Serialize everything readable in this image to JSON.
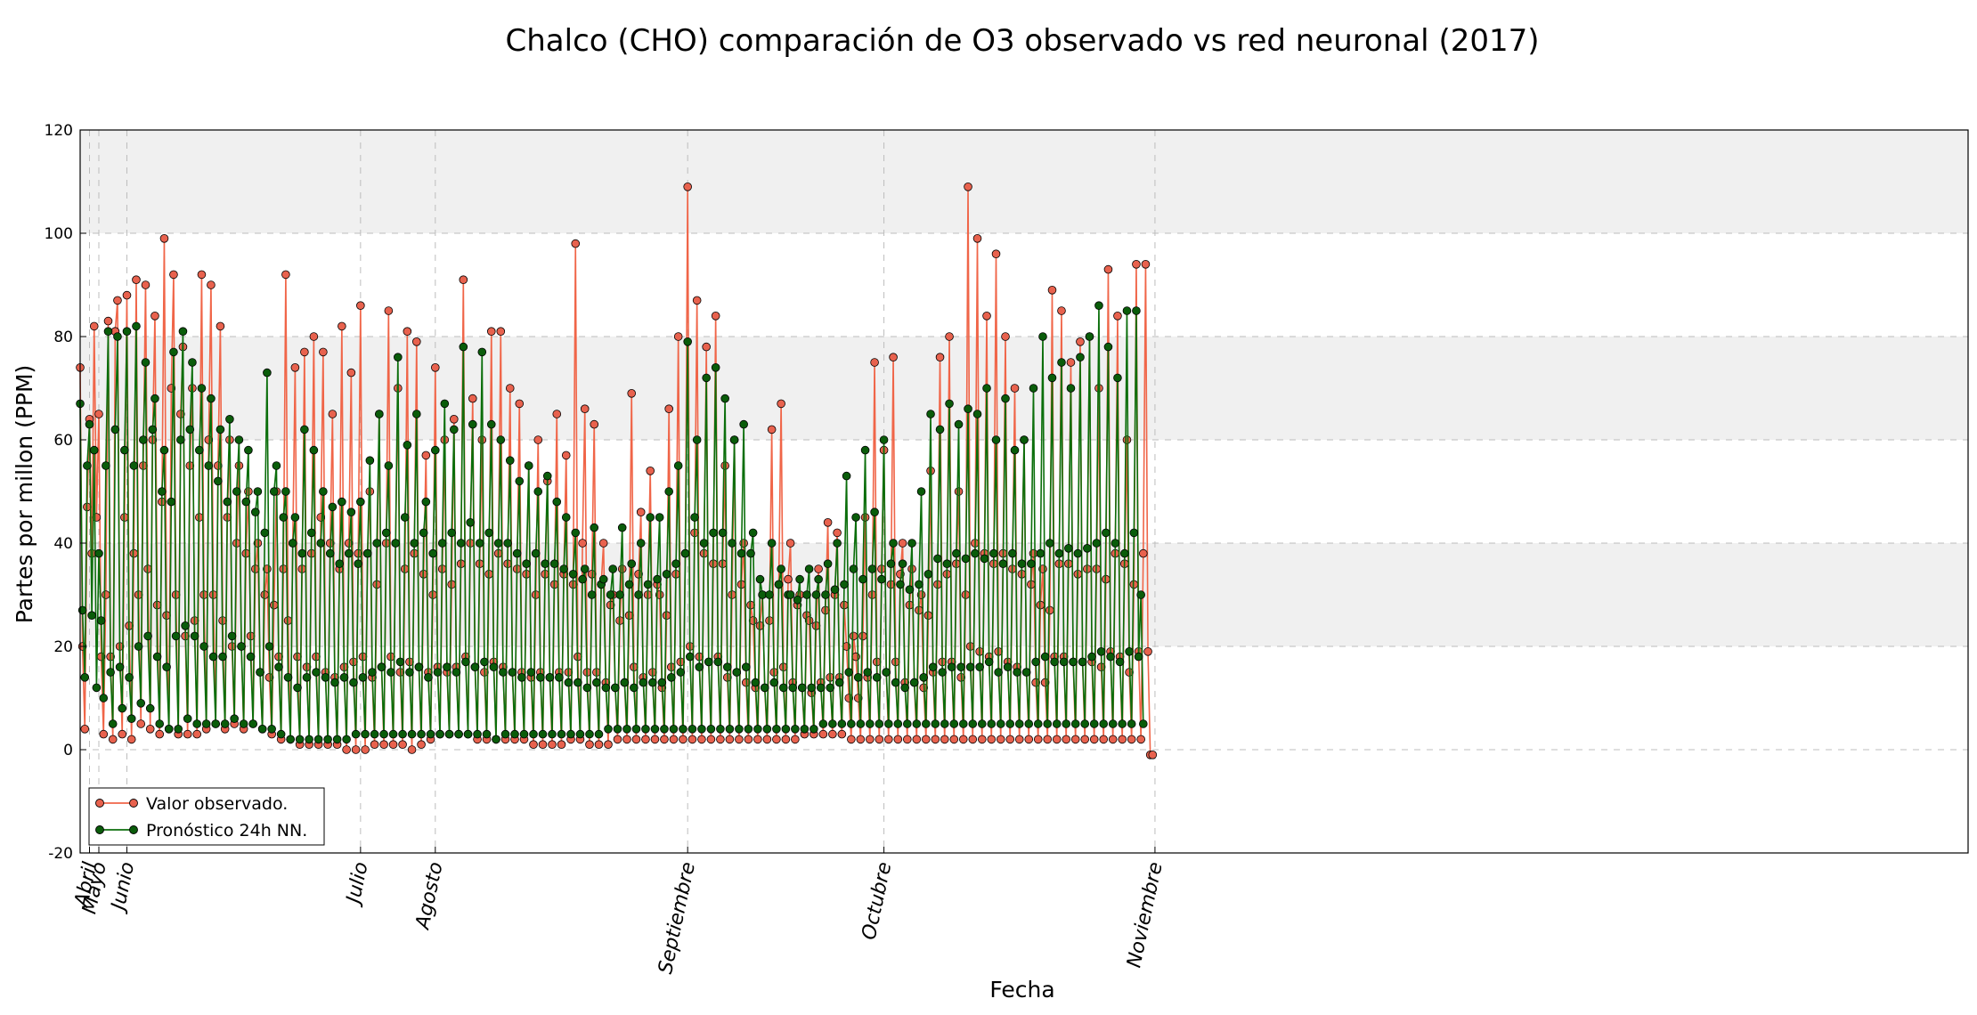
{
  "chart_data": {
    "type": "line",
    "title": "Chalco (CHO) comparación de O3 observado vs red neuronal (2017)",
    "xlabel": "Fecha",
    "ylabel": "Partes por millon (PPM)",
    "ylim": [
      -20,
      120
    ],
    "yticks": [
      -20,
      0,
      20,
      40,
      60,
      80,
      100,
      120
    ],
    "xlim": [
      "2017-04-29",
      "2017-11-17"
    ],
    "months": [
      {
        "label": "Abril",
        "date": "2017-04-30"
      },
      {
        "label": "Mayo",
        "date": "2017-05-01"
      },
      {
        "label": "Junio",
        "date": "2017-05-04"
      },
      {
        "label": "Julio",
        "date": "2017-05-29"
      },
      {
        "label": "Agosto",
        "date": "2017-06-06"
      },
      {
        "label": "Septiembre",
        "date": "2017-07-03"
      },
      {
        "label": "Octubre",
        "date": "2017-07-24"
      },
      {
        "label": "Noviembre",
        "date": "2017-08-22"
      }
    ],
    "shaded_bands": [
      [
        20,
        40
      ],
      [
        60,
        80
      ],
      [
        100,
        120
      ]
    ],
    "grid": true,
    "legend_position": "bottom-left",
    "series": [
      {
        "name": "Valor observado.",
        "color": "#f06548",
        "marker_color": "#e8624e",
        "x_start": "2017-04-29",
        "step_hours": 6,
        "values": [
          74,
          20,
          4,
          47,
          64,
          38,
          82,
          45,
          65,
          18,
          3,
          30,
          83,
          18,
          2,
          81,
          87,
          20,
          3,
          45,
          88,
          24,
          2,
          38,
          91,
          30,
          5,
          55,
          90,
          35,
          4,
          60,
          84,
          28,
          3,
          48,
          99,
          26,
          4,
          70,
          92,
          30,
          3,
          65,
          78,
          22,
          3,
          55,
          70,
          25,
          3,
          45,
          92,
          30,
          4,
          60,
          90,
          30,
          5,
          55,
          82,
          25,
          4,
          45,
          60,
          20,
          5,
          40,
          55,
          20,
          4,
          38,
          50,
          22,
          5,
          35,
          40,
          15,
          4,
          30,
          35,
          14,
          3,
          28,
          50,
          18,
          2,
          35,
          92,
          25,
          2,
          40,
          74,
          18,
          1,
          35,
          77,
          16,
          1,
          38,
          80,
          18,
          1,
          45,
          77,
          15,
          1,
          40,
          65,
          14,
          1,
          35,
          82,
          16,
          0,
          40,
          73,
          17,
          0,
          38,
          86,
          18,
          0,
          38,
          50,
          14,
          1,
          32,
          65,
          16,
          1,
          40,
          85,
          18,
          1,
          40,
          70,
          15,
          1,
          35,
          81,
          17,
          0,
          38,
          79,
          16,
          1,
          34,
          57,
          15,
          2,
          30,
          74,
          16,
          3,
          35,
          60,
          15,
          3,
          32,
          64,
          16,
          3,
          36,
          91,
          18,
          3,
          40,
          68,
          16,
          2,
          36,
          60,
          15,
          2,
          34,
          81,
          17,
          2,
          38,
          81,
          16,
          2,
          36,
          70,
          15,
          2,
          35,
          67,
          15,
          2,
          34,
          55,
          14,
          1,
          30,
          60,
          15,
          1,
          34,
          52,
          14,
          1,
          32,
          65,
          15,
          1,
          34,
          57,
          15,
          2,
          32,
          98,
          18,
          2,
          40,
          66,
          15,
          1,
          34,
          63,
          15,
          1,
          32,
          40,
          13,
          1,
          28,
          30,
          12,
          2,
          25,
          35,
          13,
          2,
          26,
          69,
          16,
          2,
          34,
          46,
          14,
          2,
          30,
          54,
          15,
          2,
          32,
          30,
          12,
          2,
          26,
          66,
          16,
          2,
          34,
          80,
          17,
          2,
          38,
          109,
          20,
          2,
          42,
          87,
          18,
          2,
          38,
          78,
          17,
          2,
          36,
          84,
          18,
          2,
          36,
          55,
          14,
          2,
          30,
          60,
          15,
          2,
          32,
          40,
          13,
          2,
          28,
          25,
          12,
          2,
          24,
          30,
          12,
          2,
          25,
          62,
          15,
          2,
          32,
          67,
          16,
          2,
          33,
          40,
          13,
          2,
          28,
          30,
          12,
          3,
          26,
          25,
          11,
          3,
          24,
          35,
          13,
          3,
          27,
          44,
          14,
          3,
          30,
          42,
          14,
          3,
          28,
          20,
          10,
          2,
          22,
          18,
          10,
          2,
          22,
          45,
          14,
          2,
          30,
          75,
          17,
          2,
          35,
          58,
          15,
          2,
          32,
          76,
          17,
          2,
          34,
          40,
          13,
          2,
          28,
          35,
          13,
          2,
          27,
          30,
          12,
          2,
          26,
          54,
          15,
          2,
          32,
          76,
          17,
          2,
          34,
          80,
          17,
          2,
          36,
          50,
          14,
          2,
          30,
          109,
          20,
          2,
          40,
          99,
          19,
          2,
          38,
          84,
          18,
          2,
          36,
          96,
          19,
          2,
          38,
          80,
          17,
          2,
          35,
          70,
          16,
          2,
          34,
          60,
          15,
          2,
          32,
          38,
          13,
          2,
          28,
          35,
          13,
          2,
          27,
          89,
          18,
          2,
          36,
          85,
          18,
          2,
          36,
          75,
          17,
          2,
          34,
          79,
          17,
          2,
          35,
          80,
          17,
          2,
          35,
          70,
          16,
          2,
          33,
          93,
          19,
          2,
          38,
          84,
          18,
          2,
          36,
          60,
          15,
          2,
          32,
          94,
          19,
          2,
          38,
          94,
          19,
          -1,
          -1
        ]
      },
      {
        "name": "Pronóstico 24h NN.",
        "color": "#0b6e0b",
        "marker_color": "#0a5c0a",
        "x_start": "2017-04-29",
        "step_hours": 6,
        "values": [
          67,
          27,
          14,
          55,
          63,
          26,
          58,
          12,
          38,
          25,
          10,
          55,
          81,
          15,
          5,
          62,
          80,
          16,
          8,
          58,
          81,
          14,
          6,
          55,
          82,
          20,
          9,
          60,
          75,
          22,
          8,
          62,
          68,
          18,
          5,
          50,
          58,
          16,
          4,
          48,
          77,
          22,
          4,
          60,
          81,
          24,
          6,
          62,
          75,
          22,
          5,
          58,
          70,
          20,
          5,
          55,
          68,
          18,
          5,
          52,
          62,
          18,
          5,
          48,
          64,
          22,
          6,
          50,
          60,
          20,
          5,
          48,
          58,
          18,
          5,
          46,
          50,
          15,
          4,
          42,
          73,
          20,
          4,
          50,
          55,
          16,
          3,
          45,
          50,
          14,
          2,
          40,
          45,
          12,
          2,
          38,
          62,
          14,
          2,
          42,
          58,
          15,
          2,
          40,
          50,
          14,
          2,
          38,
          47,
          13,
          2,
          36,
          48,
          14,
          2,
          38,
          46,
          13,
          3,
          36,
          48,
          14,
          3,
          38,
          56,
          15,
          3,
          40,
          65,
          16,
          3,
          42,
          55,
          15,
          3,
          40,
          76,
          17,
          3,
          45,
          59,
          15,
          3,
          40,
          65,
          16,
          3,
          42,
          48,
          14,
          3,
          38,
          58,
          15,
          3,
          40,
          67,
          16,
          3,
          42,
          62,
          15,
          3,
          40,
          78,
          17,
          3,
          44,
          63,
          16,
          3,
          40,
          77,
          17,
          3,
          42,
          63,
          16,
          2,
          40,
          60,
          15,
          3,
          40,
          56,
          15,
          3,
          38,
          52,
          14,
          3,
          36,
          55,
          15,
          3,
          38,
          50,
          14,
          3,
          36,
          53,
          14,
          3,
          36,
          48,
          14,
          3,
          35,
          45,
          13,
          3,
          34,
          42,
          13,
          3,
          33,
          35,
          12,
          3,
          30,
          43,
          13,
          3,
          32,
          33,
          12,
          4,
          30,
          35,
          12,
          4,
          30,
          43,
          13,
          4,
          32,
          36,
          12,
          4,
          30,
          40,
          13,
          4,
          32,
          45,
          13,
          4,
          33,
          45,
          13,
          4,
          34,
          50,
          14,
          4,
          36,
          55,
          15,
          4,
          38,
          79,
          18,
          4,
          45,
          60,
          16,
          4,
          40,
          72,
          17,
          4,
          42,
          74,
          17,
          4,
          42,
          68,
          16,
          4,
          40,
          60,
          15,
          4,
          38,
          63,
          16,
          4,
          38,
          42,
          13,
          4,
          33,
          30,
          12,
          4,
          30,
          40,
          13,
          4,
          32,
          35,
          12,
          4,
          30,
          30,
          12,
          4,
          29,
          33,
          12,
          4,
          30,
          35,
          12,
          4,
          30,
          33,
          12,
          5,
          30,
          36,
          12,
          5,
          31,
          40,
          13,
          5,
          32,
          53,
          15,
          5,
          35,
          45,
          14,
          5,
          33,
          58,
          15,
          5,
          35,
          46,
          14,
          5,
          33,
          60,
          15,
          5,
          36,
          40,
          13,
          5,
          32,
          36,
          12,
          5,
          31,
          40,
          13,
          5,
          32,
          50,
          14,
          5,
          34,
          65,
          16,
          5,
          37,
          62,
          15,
          5,
          36,
          67,
          16,
          5,
          38,
          63,
          16,
          5,
          37,
          66,
          16,
          5,
          38,
          65,
          16,
          5,
          37,
          70,
          17,
          5,
          38,
          60,
          15,
          5,
          36,
          68,
          16,
          5,
          38,
          58,
          15,
          5,
          36,
          60,
          15,
          5,
          36,
          70,
          17,
          5,
          38,
          80,
          18,
          5,
          40,
          72,
          17,
          5,
          38,
          75,
          17,
          5,
          39,
          70,
          17,
          5,
          38,
          76,
          17,
          5,
          39,
          80,
          18,
          5,
          40,
          86,
          19,
          5,
          42,
          78,
          18,
          5,
          40,
          72,
          17,
          5,
          38,
          85,
          19,
          5,
          42,
          85,
          18,
          30,
          5
        ]
      }
    ]
  }
}
